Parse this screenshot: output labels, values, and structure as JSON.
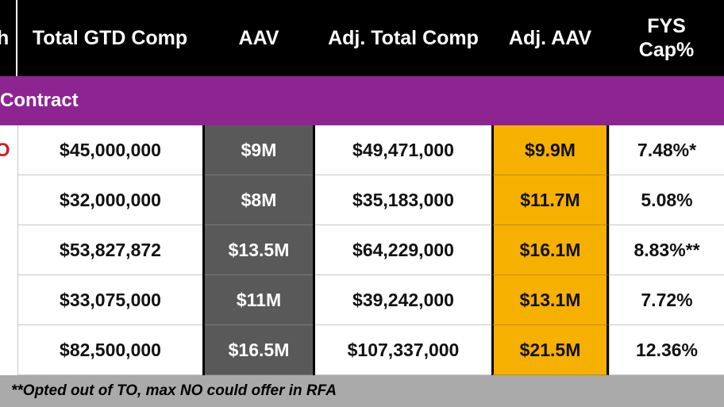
{
  "header": {
    "cut_col": "h",
    "columns": [
      {
        "key": "gtd",
        "label": "Total GTD Comp"
      },
      {
        "key": "aav",
        "label": "AAV"
      },
      {
        "key": "adjtotal",
        "label": "Adj. Total Comp"
      },
      {
        "key": "adjaav",
        "label": "Adj. AAV"
      },
      {
        "key": "cap",
        "label": "FYS Cap%"
      }
    ]
  },
  "band": {
    "label": "Contract"
  },
  "rows": [
    {
      "edge": "O",
      "gtd": "$45,000,000",
      "aav": "$9M",
      "adjtotal": "$49,471,000",
      "adjaav": "$9.9M",
      "cap": "7.48%*"
    },
    {
      "edge": "",
      "gtd": "$32,000,000",
      "aav": "$8M",
      "adjtotal": "$35,183,000",
      "adjaav": "$11.7M",
      "cap": "5.08%"
    },
    {
      "edge": "",
      "gtd": "$53,827,872",
      "aav": "$13.5M",
      "adjtotal": "$64,229,000",
      "adjaav": "$16.1M",
      "cap": "8.83%**"
    },
    {
      "edge": "",
      "gtd": "$33,075,000",
      "aav": "$11M",
      "adjtotal": "$39,242,000",
      "adjaav": "$13.1M",
      "cap": "7.72%"
    },
    {
      "edge": "",
      "gtd": "$82,500,000",
      "aav": "$16.5M",
      "adjtotal": "$107,337,000",
      "adjaav": "$21.5M",
      "cap": "12.36%"
    }
  ],
  "footer": {
    "note": "**Opted out of TO, max NO could offer in RFA"
  },
  "colors": {
    "header_bg": "#000000",
    "band_bg": "#8e2492",
    "aav_bg": "#595959",
    "adjaav_bg": "#f6b000",
    "footer_bg": "#aaaaaa",
    "edge_mark": "#d71920"
  }
}
